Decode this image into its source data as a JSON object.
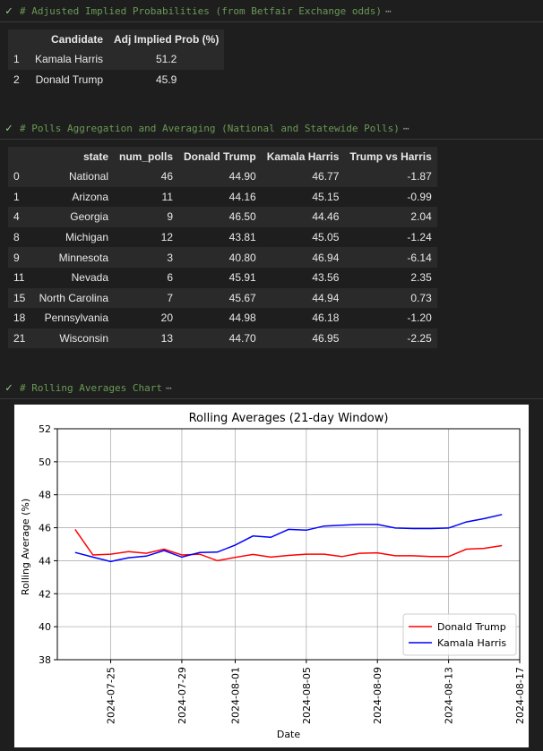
{
  "cells": [
    {
      "header": "# Adjusted Implied Probabilities (from Betfair Exchange odds)",
      "ellipsis": "⋯"
    },
    {
      "header": "# Polls Aggregation and Averaging (National and Statewide Polls)",
      "ellipsis": "⋯"
    },
    {
      "header": "# Rolling Averages Chart",
      "ellipsis": "⋯"
    }
  ],
  "probabilities": {
    "columns": [
      "",
      "Candidate",
      "Adj Implied Prob (%)"
    ],
    "rows": [
      [
        "1",
        "Kamala Harris",
        "51.2"
      ],
      [
        "2",
        "Donald Trump",
        "45.9"
      ]
    ]
  },
  "polls": {
    "columns": [
      "",
      "state",
      "num_polls",
      "Donald Trump",
      "Kamala Harris",
      "Trump vs Harris"
    ],
    "rows": [
      [
        "0",
        "National",
        "46",
        "44.90",
        "46.77",
        "-1.87"
      ],
      [
        "1",
        "Arizona",
        "11",
        "44.16",
        "45.15",
        "-0.99"
      ],
      [
        "4",
        "Georgia",
        "9",
        "46.50",
        "44.46",
        "2.04"
      ],
      [
        "8",
        "Michigan",
        "12",
        "43.81",
        "45.05",
        "-1.24"
      ],
      [
        "9",
        "Minnesota",
        "3",
        "40.80",
        "46.94",
        "-6.14"
      ],
      [
        "11",
        "Nevada",
        "6",
        "45.91",
        "43.56",
        "2.35"
      ],
      [
        "15",
        "North Carolina",
        "7",
        "45.67",
        "44.94",
        "0.73"
      ],
      [
        "18",
        "Pennsylvania",
        "20",
        "44.98",
        "46.18",
        "-1.20"
      ],
      [
        "21",
        "Wisconsin",
        "13",
        "44.70",
        "46.95",
        "-2.25"
      ]
    ]
  },
  "chart_data": {
    "type": "line",
    "title": "Rolling Averages (21-day Window)",
    "xlabel": "Date",
    "ylabel": "Rolling Average (%)",
    "ylim": [
      38,
      52
    ],
    "yticks": [
      "38",
      "40",
      "42",
      "44",
      "46",
      "48",
      "50",
      "52"
    ],
    "xticks": [
      "2024-07-25",
      "2024-07-29",
      "2024-08-01",
      "2024-08-05",
      "2024-08-09",
      "2024-08-13",
      "2024-08-17"
    ],
    "xlim": [
      "2024-07-22",
      "2024-08-17"
    ],
    "grid": true,
    "legend_position": "lower right",
    "series": [
      {
        "name": "Donald Trump",
        "color": "#ff0000",
        "points": [
          [
            "2024-07-23",
            45.9
          ],
          [
            "2024-07-24",
            44.35
          ],
          [
            "2024-07-25",
            44.4
          ],
          [
            "2024-07-26",
            44.55
          ],
          [
            "2024-07-27",
            44.45
          ],
          [
            "2024-07-28",
            44.7
          ],
          [
            "2024-07-29",
            44.35
          ],
          [
            "2024-07-30",
            44.4
          ],
          [
            "2024-07-31",
            44.0
          ],
          [
            "2024-08-01",
            44.2
          ],
          [
            "2024-08-02",
            44.38
          ],
          [
            "2024-08-03",
            44.22
          ],
          [
            "2024-08-04",
            44.32
          ],
          [
            "2024-08-05",
            44.4
          ],
          [
            "2024-08-06",
            44.4
          ],
          [
            "2024-08-07",
            44.25
          ],
          [
            "2024-08-08",
            44.45
          ],
          [
            "2024-08-09",
            44.48
          ],
          [
            "2024-08-10",
            44.3
          ],
          [
            "2024-08-11",
            44.3
          ],
          [
            "2024-08-12",
            44.25
          ],
          [
            "2024-08-13",
            44.25
          ],
          [
            "2024-08-14",
            44.7
          ],
          [
            "2024-08-15",
            44.75
          ],
          [
            "2024-08-16",
            44.92
          ]
        ]
      },
      {
        "name": "Kamala Harris",
        "color": "#0000ff",
        "points": [
          [
            "2024-07-23",
            44.5
          ],
          [
            "2024-07-24",
            44.22
          ],
          [
            "2024-07-25",
            43.95
          ],
          [
            "2024-07-26",
            44.18
          ],
          [
            "2024-07-27",
            44.28
          ],
          [
            "2024-07-28",
            44.62
          ],
          [
            "2024-07-29",
            44.22
          ],
          [
            "2024-07-30",
            44.5
          ],
          [
            "2024-07-31",
            44.52
          ],
          [
            "2024-08-01",
            44.95
          ],
          [
            "2024-08-02",
            45.5
          ],
          [
            "2024-08-03",
            45.42
          ],
          [
            "2024-08-04",
            45.9
          ],
          [
            "2024-08-05",
            45.85
          ],
          [
            "2024-08-06",
            46.1
          ],
          [
            "2024-08-07",
            46.15
          ],
          [
            "2024-08-08",
            46.2
          ],
          [
            "2024-08-09",
            46.2
          ],
          [
            "2024-08-10",
            45.98
          ],
          [
            "2024-08-11",
            45.95
          ],
          [
            "2024-08-12",
            45.95
          ],
          [
            "2024-08-13",
            45.98
          ],
          [
            "2024-08-14",
            46.35
          ],
          [
            "2024-08-15",
            46.55
          ],
          [
            "2024-08-16",
            46.8
          ]
        ]
      }
    ]
  }
}
